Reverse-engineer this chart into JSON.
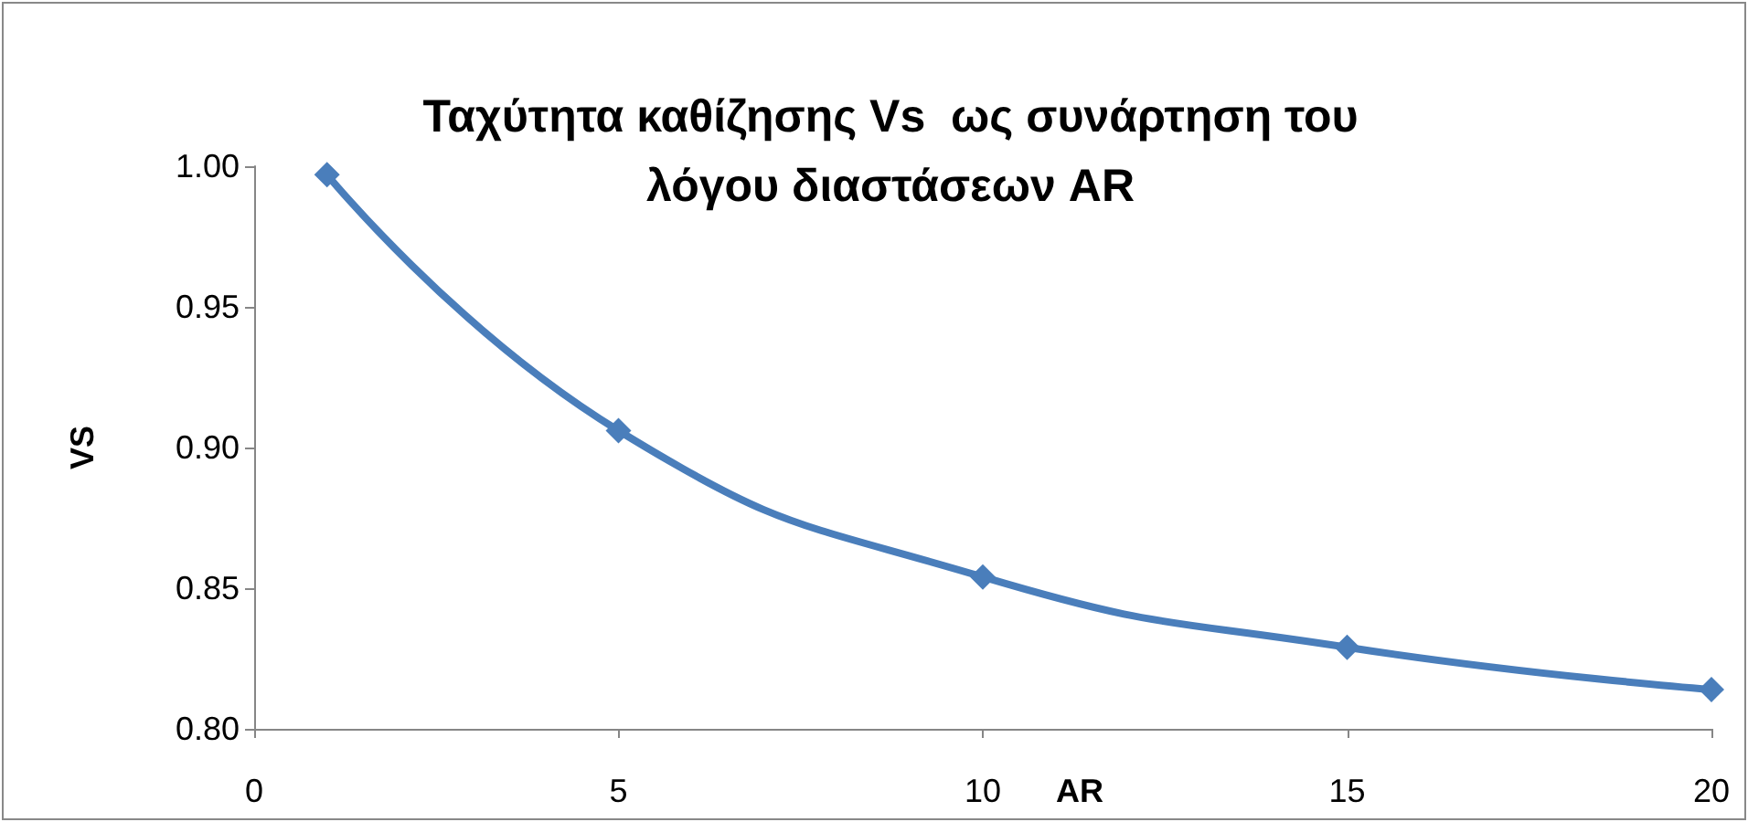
{
  "chart_data": {
    "type": "line",
    "title": "Ταχύτητα καθίζησης Vs  ως συνάρτηση του\nλόγου διαστάσεων AR",
    "xlabel": "AR",
    "ylabel": "VS",
    "x": [
      1,
      5,
      10,
      15,
      20
    ],
    "series": [
      {
        "color": "#4a7ebb",
        "values": [
          0.997,
          0.906,
          0.854,
          0.829,
          0.814
        ]
      }
    ],
    "xlim": [
      0,
      20
    ],
    "xticks": [
      0,
      5,
      10,
      15,
      20
    ],
    "ylim": [
      0.8,
      1.0
    ],
    "yticks": [
      {
        "value": 0.8,
        "label": "0.80"
      },
      {
        "value": 0.85,
        "label": "0.85"
      },
      {
        "value": 0.9,
        "label": "0.90"
      },
      {
        "value": 0.95,
        "label": "0.95"
      },
      {
        "value": 1.0,
        "label": "1.00"
      }
    ],
    "grid": false,
    "marker": "diamond",
    "line_style": "solid"
  }
}
